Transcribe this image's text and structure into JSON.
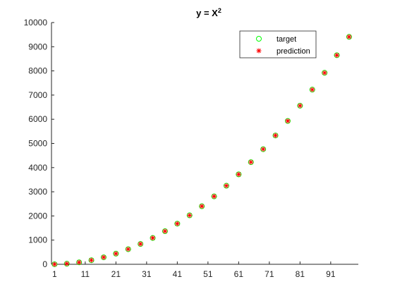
{
  "chart_data": {
    "type": "scatter",
    "title_base": "y = X",
    "title_exponent": "2",
    "xlabel": "",
    "ylabel": "",
    "x": [
      1,
      5,
      9,
      13,
      17,
      21,
      25,
      29,
      33,
      37,
      41,
      45,
      49,
      53,
      57,
      61,
      65,
      69,
      73,
      77,
      81,
      85,
      89,
      93,
      97
    ],
    "series": [
      {
        "name": "target",
        "marker": "circle",
        "color": "#00ff00",
        "values": [
          1,
          25,
          81,
          169,
          289,
          441,
          625,
          841,
          1089,
          1369,
          1681,
          2025,
          2401,
          2809,
          3249,
          3721,
          4225,
          4761,
          5329,
          5929,
          6561,
          7225,
          7921,
          8649,
          9409
        ]
      },
      {
        "name": "prediction",
        "marker": "asterisk",
        "color": "#ff0000",
        "values": [
          1,
          25,
          81,
          169,
          289,
          441,
          625,
          841,
          1089,
          1369,
          1681,
          2025,
          2401,
          2809,
          3249,
          3721,
          4225,
          4761,
          5329,
          5929,
          6561,
          7225,
          7921,
          8649,
          9409
        ]
      }
    ],
    "xlim": [
      0,
      100
    ],
    "ylim": [
      0,
      10000
    ],
    "xticks": [
      1,
      11,
      21,
      31,
      41,
      51,
      61,
      71,
      81,
      91
    ],
    "yticks": [
      0,
      1000,
      2000,
      3000,
      4000,
      5000,
      6000,
      7000,
      8000,
      9000,
      10000
    ],
    "grid": false,
    "legend_position": "top-right"
  }
}
